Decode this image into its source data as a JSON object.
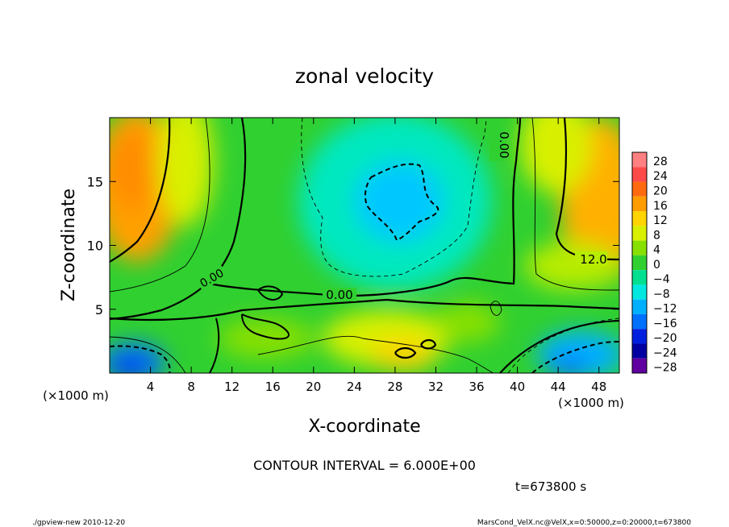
{
  "chart_data": {
    "type": "heatmap",
    "title": "zonal velocity",
    "xlabel": "X-coordinate",
    "ylabel": "Z-coordinate",
    "x_unit": "(×1000 m)",
    "x_unit_right": "(×1000 m)",
    "xlim": [
      0,
      50
    ],
    "ylim": [
      0,
      20
    ],
    "x_ticks": [
      4,
      8,
      12,
      16,
      20,
      24,
      28,
      32,
      36,
      40,
      44,
      48
    ],
    "y_ticks": [
      5,
      10,
      15
    ],
    "colorbar": {
      "levels": [
        28,
        24,
        20,
        16,
        12,
        8,
        4,
        0,
        -4,
        -8,
        -12,
        -16,
        -20,
        -24,
        -28
      ],
      "colors": [
        "#ff8080",
        "#ff4a4a",
        "#ff6a10",
        "#ff9c00",
        "#ffd400",
        "#d8f000",
        "#88e000",
        "#30d030",
        "#00e090",
        "#00e8e0",
        "#00b0ff",
        "#0070ff",
        "#0020e0",
        "#0000a0",
        "#6000a0"
      ]
    },
    "contour_labels": [
      "0.00",
      "0.00",
      "0.00",
      "12.0"
    ],
    "contour_interval_text": "CONTOUR INTERVAL = 6.000E+00",
    "time_text": "t=673800 s"
  },
  "footer": {
    "left": "./gpview-new  2010-12-20",
    "right": "MarsCond_VelX.nc@VelX,x=0:50000,z=0:20000,t=673800"
  }
}
